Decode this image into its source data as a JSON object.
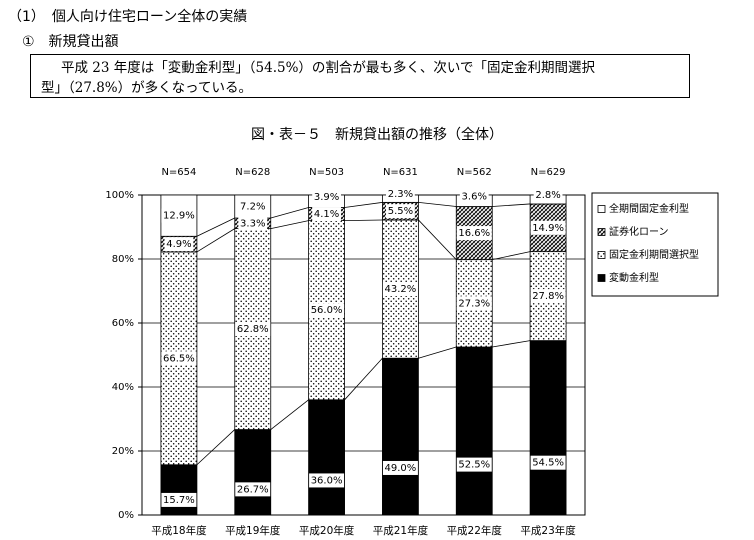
{
  "section_heading": "（1）　個人向け住宅ローン全体の実績",
  "subsection_heading": "①　新規貸出額",
  "summary": {
    "line1": "平成 23 年度は「変動金利型」（54.5%）の割合が最も多く、次いで「固定金利期間選択",
    "line2": "型」（27.8%）が多くなっている。"
  },
  "chart_data": {
    "type": "bar",
    "stacked": true,
    "title": "図・表－５　新規貸出額の推移（全体）",
    "categories": [
      "平成18年度",
      "平成19年度",
      "平成20年度",
      "平成21年度",
      "平成22年度",
      "平成23年度"
    ],
    "sample_sizes": [
      "N=654",
      "N=628",
      "N=503",
      "N=631",
      "N=562",
      "N=629"
    ],
    "ylim": [
      0,
      100
    ],
    "yticks": [
      "0%",
      "20%",
      "40%",
      "60%",
      "80%",
      "100%"
    ],
    "grid": true,
    "legend_position": "right",
    "series": [
      {
        "name": "変動金利型",
        "values": [
          15.7,
          26.7,
          36.0,
          49.0,
          52.5,
          54.5
        ],
        "labels": [
          "15.7%",
          "26.7%",
          "36.0%",
          "49.0%",
          "52.5%",
          "54.5%"
        ],
        "color": "#000000",
        "pattern": "solid"
      },
      {
        "name": "固定金利期間選択型",
        "values": [
          66.5,
          62.8,
          56.0,
          43.2,
          27.3,
          27.8
        ],
        "labels": [
          "66.5%",
          "62.8%",
          "56.0%",
          "43.2%",
          "27.3%",
          "27.8%"
        ],
        "color": "#ffffff",
        "pattern": "dots"
      },
      {
        "name": "証券化ローン",
        "values": [
          4.9,
          3.3,
          4.1,
          5.5,
          16.6,
          14.9
        ],
        "labels": [
          "4.9%",
          "3.3%",
          "4.1%",
          "5.5%",
          "16.6%",
          "14.9%"
        ],
        "color": "#888888",
        "pattern": "hatch"
      },
      {
        "name": "全期間固定金利型",
        "values": [
          12.9,
          7.2,
          3.9,
          2.3,
          3.6,
          2.8
        ],
        "labels": [
          "12.9%",
          "7.2%",
          "3.9%",
          "2.3%",
          "3.6%",
          "2.8%"
        ],
        "color": "#ffffff",
        "pattern": "blank"
      }
    ],
    "legend": [
      "全期間固定金利型",
      "証券化ローン",
      "固定金利期間選択型",
      "変動金利型"
    ]
  }
}
